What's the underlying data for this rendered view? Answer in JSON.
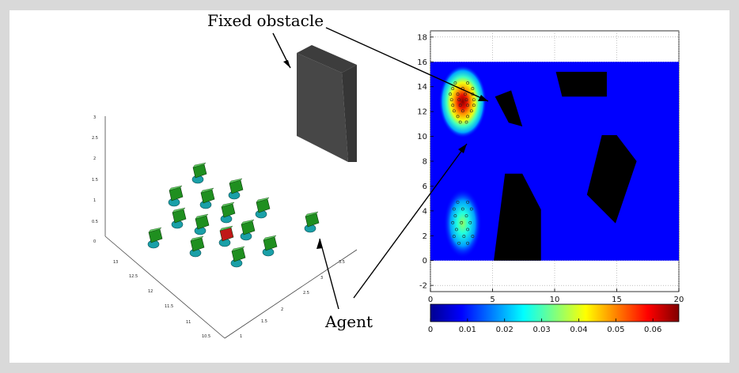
{
  "annotations": {
    "fixed_obstacle": "Fixed obstacle",
    "agent": "Agent"
  },
  "scene3d": {
    "z_ticks": [
      "0",
      "0.5",
      "1",
      "1.5",
      "2",
      "2.5",
      "3"
    ],
    "y_ticks": [
      "13",
      "12.5",
      "12",
      "11.5",
      "11",
      "10.5"
    ],
    "x_ticks": [
      "1",
      "1.5",
      "2",
      "2.5",
      "3",
      "3.5"
    ],
    "colors": {
      "agent_body": "#1f8f1f",
      "agent_highlight": "#c01818",
      "agent_base": "#1aa0a8",
      "obstacle": "#4a4a4a"
    }
  },
  "chart_data": {
    "type": "heatmap",
    "xlim": [
      0,
      20
    ],
    "ylim": [
      -2.5,
      18.5
    ],
    "x_ticks": [
      "0",
      "5",
      "10",
      "15",
      "20"
    ],
    "y_ticks": [
      "-2",
      "0",
      "2",
      "4",
      "6",
      "8",
      "10",
      "12",
      "14",
      "16",
      "18"
    ],
    "colorbar": {
      "ticks": [
        "0",
        "0.01",
        "0.02",
        "0.03",
        "0.04",
        "0.05",
        "0.06"
      ],
      "range": [
        0,
        0.067
      ]
    },
    "field_extent": {
      "x": [
        0,
        20
      ],
      "y": [
        0,
        16
      ]
    },
    "density_peaks": [
      {
        "x": 2.6,
        "y": 12.8,
        "value": 0.067
      },
      {
        "x": 2.6,
        "y": 3.0,
        "value": 0.03
      }
    ],
    "obstacles": [
      [
        [
          5.2,
          13.2
        ],
        [
          6.5,
          13.7
        ],
        [
          7.4,
          10.8
        ],
        [
          6.3,
          11.1
        ]
      ],
      [
        [
          10.1,
          15.2
        ],
        [
          14.2,
          15.2
        ],
        [
          14.2,
          13.2
        ],
        [
          10.6,
          13.2
        ]
      ],
      [
        [
          13.8,
          10.1
        ],
        [
          15.0,
          10.1
        ],
        [
          16.6,
          8.0
        ],
        [
          14.9,
          3.0
        ],
        [
          12.6,
          5.3
        ]
      ],
      [
        [
          6.0,
          7.0
        ],
        [
          7.4,
          7.0
        ],
        [
          8.9,
          4.1
        ],
        [
          8.9,
          0
        ],
        [
          5.1,
          0
        ]
      ]
    ]
  }
}
